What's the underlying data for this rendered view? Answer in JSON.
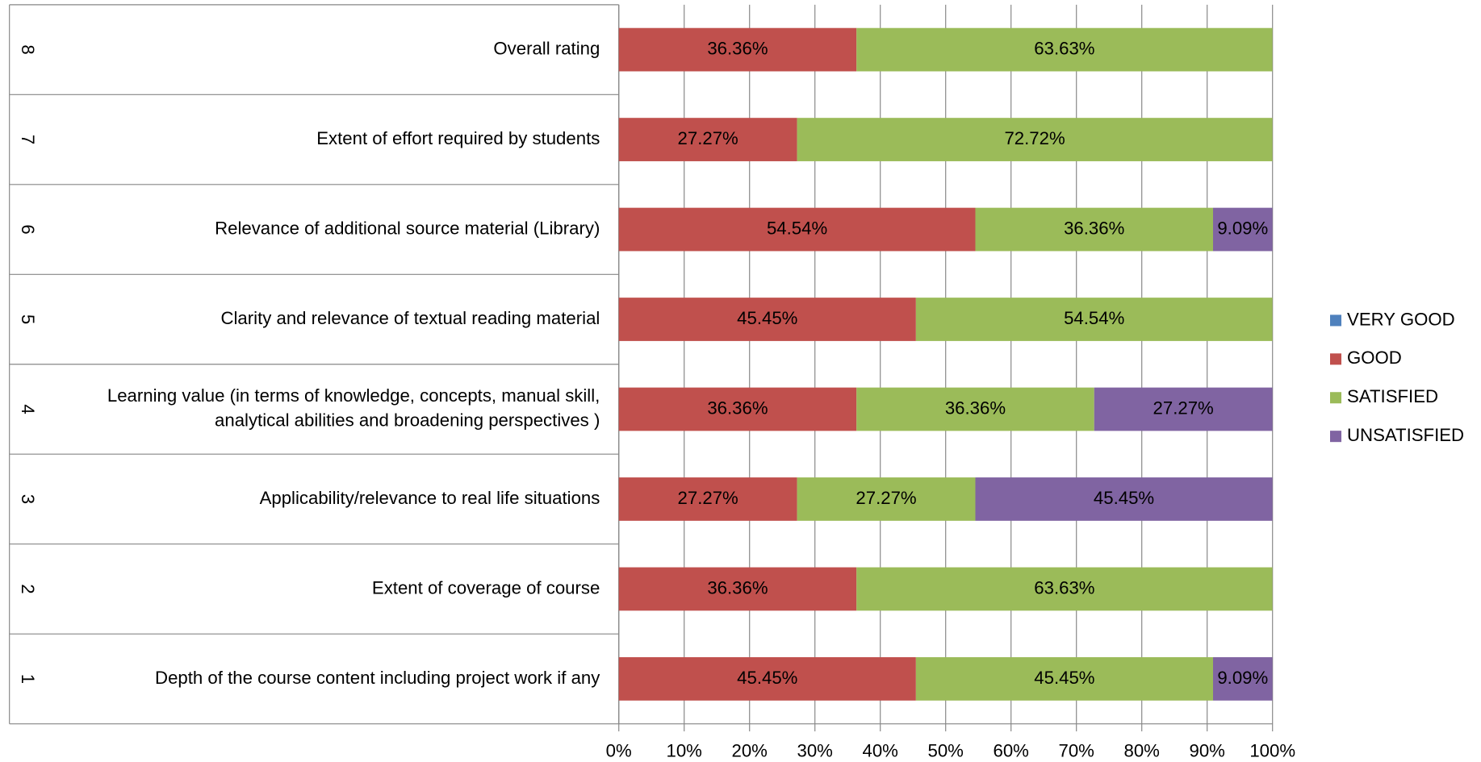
{
  "chart_data": {
    "type": "stacked_barh",
    "category_numbers": [
      "1",
      "2",
      "3",
      "4",
      "5",
      "6",
      "7",
      "8"
    ],
    "categories": [
      "Depth of the course content including project work if any",
      "Extent of coverage of course",
      "Applicability/relevance to real life situations",
      [
        "Learning value (in terms of knowledge, concepts, manual skill,",
        "analytical abilities and broadening perspectives )"
      ],
      "Clarity and relevance of textual reading material",
      "Relevance of additional source material (Library)",
      "Extent of effort required by students",
      "Overall rating"
    ],
    "series": [
      {
        "name": "VERY GOOD",
        "color": "#4f81bd",
        "values": [
          0,
          0,
          0,
          0,
          0,
          0,
          0,
          0
        ]
      },
      {
        "name": "GOOD",
        "color": "#c0504d",
        "values": [
          45.45,
          36.36,
          27.27,
          36.36,
          45.45,
          54.54,
          27.27,
          36.36
        ],
        "value_labels": [
          "45.45%",
          "36.36%",
          "27.27%",
          "36.36%",
          "45.45%",
          "54.54%",
          "27.27%",
          "36.36%"
        ]
      },
      {
        "name": "SATISFIED",
        "color": "#9bbb59",
        "values": [
          45.45,
          63.63,
          27.27,
          36.36,
          54.54,
          36.36,
          72.72,
          63.63
        ],
        "value_labels": [
          "45.45%",
          "63.63%",
          "27.27%",
          "36.36%",
          "54.54%",
          "36.36%",
          "72.72%",
          "63.63%"
        ]
      },
      {
        "name": "UNSATISFIED",
        "color": "#8064a2",
        "values": [
          9.09,
          0,
          45.45,
          27.27,
          0,
          9.09,
          0,
          0
        ],
        "value_labels": [
          "9.09%",
          null,
          "45.45%",
          "27.27%",
          null,
          "9.09%",
          null,
          null
        ]
      }
    ],
    "xlim": [
      0,
      100
    ],
    "xticks": [
      {
        "value": 0,
        "label": "0%"
      },
      {
        "value": 10,
        "label": "10%"
      },
      {
        "value": 20,
        "label": "20%"
      },
      {
        "value": 30,
        "label": "30%"
      },
      {
        "value": 40,
        "label": "40%"
      },
      {
        "value": 50,
        "label": "50%"
      },
      {
        "value": 60,
        "label": "60%"
      },
      {
        "value": 70,
        "label": "70%"
      },
      {
        "value": 80,
        "label": "80%"
      },
      {
        "value": 90,
        "label": "90%"
      },
      {
        "value": 100,
        "label": "100%"
      }
    ],
    "grid": true,
    "legend": "right"
  }
}
